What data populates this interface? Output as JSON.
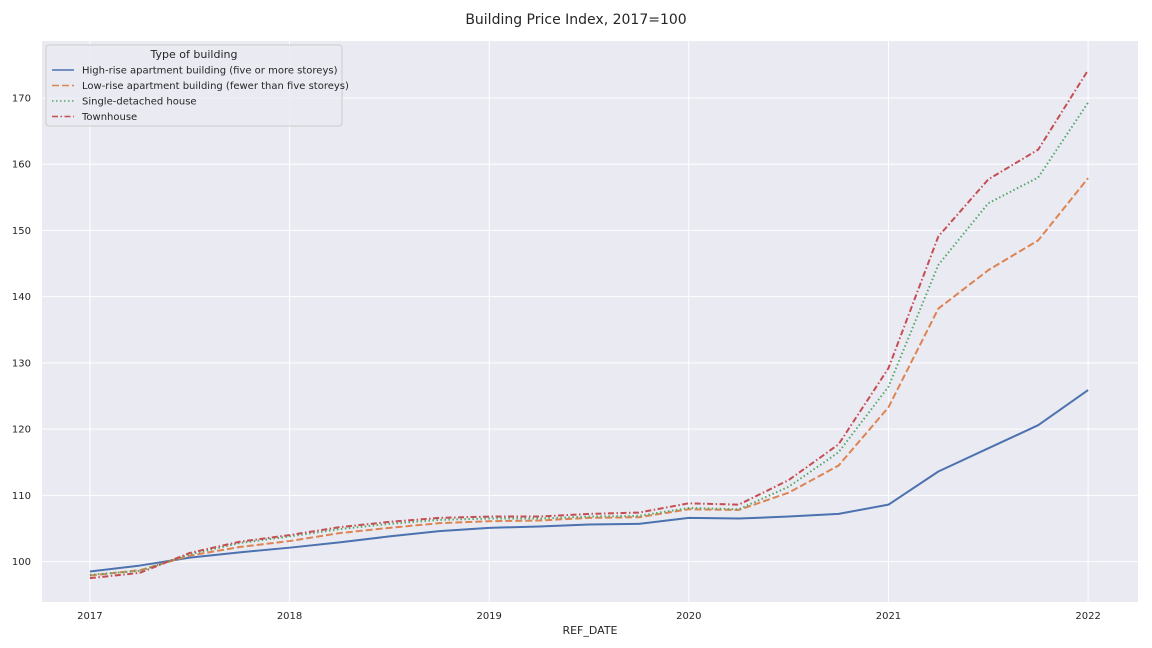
{
  "chart_data": {
    "type": "line",
    "title": "Building Price Index, 2017=100",
    "xlabel": "REF_DATE",
    "ylabel": "",
    "x": [
      "2017-01",
      "2017-04",
      "2017-07",
      "2017-10",
      "2018-01",
      "2018-04",
      "2018-07",
      "2018-10",
      "2019-01",
      "2019-04",
      "2019-07",
      "2019-10",
      "2020-01",
      "2020-04",
      "2020-07",
      "2020-10",
      "2021-01",
      "2021-04",
      "2021-07",
      "2021-10",
      "2022-01"
    ],
    "xlim": [
      2016.76,
      2022.25
    ],
    "ylim": [
      93.9,
      178.6
    ],
    "x_ticks": [
      "2017",
      "2018",
      "2019",
      "2020",
      "2021",
      "2022"
    ],
    "y_ticks": [
      100,
      110,
      120,
      130,
      140,
      150,
      160,
      170
    ],
    "grid": true,
    "legend": {
      "title": "Type of building",
      "placement": "upper left"
    },
    "series": [
      {
        "name": "High-rise apartment building (five or more storeys)",
        "color": "#4c72b0",
        "dash": "solid",
        "values": [
          98.5,
          99.4,
          100.6,
          101.4,
          102.1,
          102.9,
          103.8,
          104.6,
          105.1,
          105.3,
          105.6,
          105.7,
          106.6,
          106.5,
          106.8,
          107.2,
          108.6,
          113.6,
          117.1,
          120.6,
          125.9
        ]
      },
      {
        "name": "Low-rise apartment building (fewer than five storeys)",
        "color": "#dd8452",
        "dash": "dashed",
        "values": [
          97.9,
          98.7,
          100.9,
          102.2,
          103.1,
          104.3,
          105.1,
          105.8,
          106.1,
          106.2,
          106.6,
          106.7,
          107.9,
          107.8,
          110.4,
          114.5,
          123.3,
          138.2,
          144.0,
          148.5,
          157.9
        ]
      },
      {
        "name": "Single-detached house",
        "color": "#55a868",
        "dash": "dotted",
        "values": [
          98.0,
          98.6,
          101.1,
          102.8,
          103.8,
          104.9,
          105.7,
          106.3,
          106.5,
          106.5,
          106.8,
          106.9,
          108.1,
          107.9,
          111.3,
          116.5,
          126.4,
          144.8,
          154.1,
          158.0,
          169.3
        ]
      },
      {
        "name": "Townhouse",
        "color": "#c44e52",
        "dash": "dashdot",
        "values": [
          97.5,
          98.3,
          101.3,
          103.0,
          104.0,
          105.2,
          106.0,
          106.6,
          106.8,
          106.8,
          107.2,
          107.4,
          108.8,
          108.6,
          112.3,
          117.7,
          129.2,
          149.1,
          157.7,
          162.2,
          174.2
        ]
      }
    ]
  }
}
